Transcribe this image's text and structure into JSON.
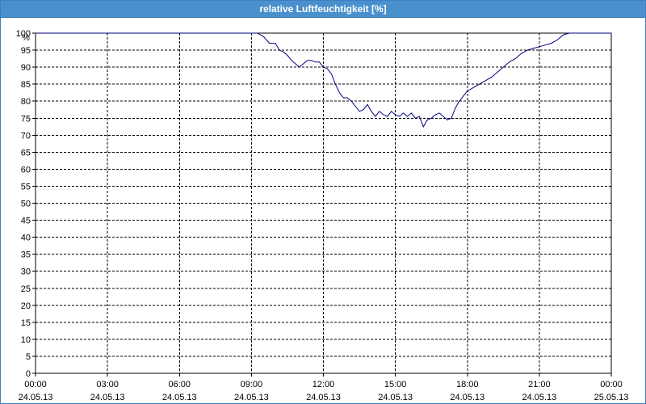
{
  "window": {
    "title": "relative Luftfeuchtigkeit [%]"
  },
  "chart_data": {
    "type": "line",
    "title": "relative Luftfeuchtigkeit [%]",
    "ylabel": "%",
    "xlabel": "",
    "ylim": [
      0,
      100
    ],
    "yticks": [
      0,
      5,
      10,
      15,
      20,
      25,
      30,
      35,
      40,
      45,
      50,
      55,
      60,
      65,
      70,
      75,
      80,
      85,
      90,
      95,
      100
    ],
    "xlim": [
      "24.05.13 00:00",
      "25.05.13 00:00"
    ],
    "xticks": [
      {
        "time": "00:00",
        "date": "24.05.13"
      },
      {
        "time": "03:00",
        "date": "24.05.13"
      },
      {
        "time": "06:00",
        "date": "24.05.13"
      },
      {
        "time": "09:00",
        "date": "24.05.13"
      },
      {
        "time": "12:00",
        "date": "24.05.13"
      },
      {
        "time": "15:00",
        "date": "24.05.13"
      },
      {
        "time": "18:00",
        "date": "24.05.13"
      },
      {
        "time": "21:00",
        "date": "24.05.13"
      },
      {
        "time": "00:00",
        "date": "25.05.13"
      }
    ],
    "grid": true,
    "line_color": "#000080",
    "series": [
      {
        "x": [
          "00:00",
          "03:00",
          "06:00",
          "09:00",
          "09:15",
          "09:30",
          "09:45",
          "10:00",
          "10:10",
          "10:20",
          "10:30",
          "10:40",
          "10:50",
          "11:00",
          "11:10",
          "11:20",
          "11:30",
          "11:40",
          "11:50",
          "12:00",
          "12:10",
          "12:20",
          "12:30",
          "12:40",
          "12:50",
          "13:00",
          "13:10",
          "13:20",
          "13:30",
          "13:40",
          "13:50",
          "14:00",
          "14:10",
          "14:20",
          "14:30",
          "14:40",
          "14:50",
          "15:00",
          "15:10",
          "15:20",
          "15:30",
          "15:40",
          "15:50",
          "16:00",
          "16:10",
          "16:20",
          "16:30",
          "16:40",
          "16:50",
          "17:00",
          "17:10",
          "17:20",
          "17:30",
          "17:40",
          "17:50",
          "18:00",
          "18:15",
          "18:30",
          "18:45",
          "19:00",
          "19:15",
          "19:30",
          "19:45",
          "20:00",
          "20:15",
          "20:30",
          "20:45",
          "21:00",
          "21:15",
          "21:30",
          "21:45",
          "22:00",
          "22:15",
          "22:30",
          "23:00",
          "24:00"
        ],
        "y": [
          100,
          100,
          100,
          100,
          100,
          99,
          97,
          97,
          95,
          94.5,
          93.5,
          92,
          91,
          90,
          91,
          92,
          92,
          91.5,
          91.5,
          90,
          89.5,
          88,
          85,
          82.5,
          81,
          81,
          80,
          78.5,
          77,
          77.5,
          79,
          77,
          75.5,
          77,
          76,
          75.5,
          77,
          76,
          75.5,
          76.5,
          75.5,
          76.5,
          75,
          75.5,
          72.5,
          74.5,
          75,
          76,
          76.5,
          75.5,
          74.5,
          75,
          78,
          80,
          81.5,
          83,
          84,
          85,
          86,
          87,
          88.5,
          90,
          91.5,
          92.5,
          94,
          95,
          95.5,
          96,
          96.5,
          97,
          98,
          99.5,
          100,
          100,
          100,
          100
        ]
      }
    ]
  }
}
